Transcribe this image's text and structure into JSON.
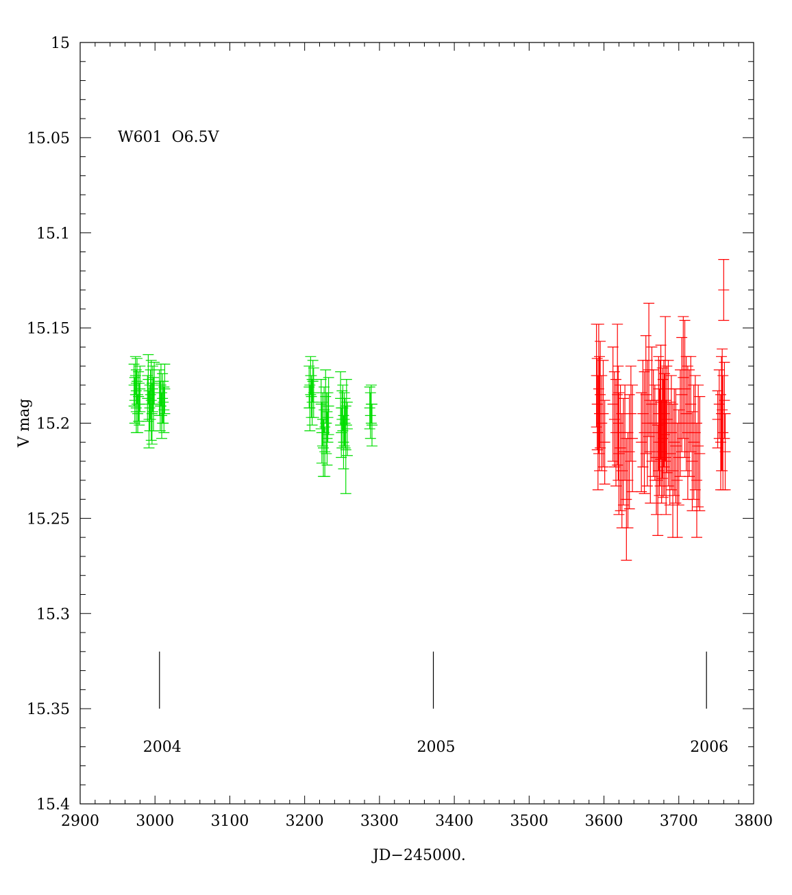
{
  "chart_data": {
    "type": "scatter",
    "title": "",
    "xlabel": "JD−245000.",
    "ylabel": "V mag",
    "xlim": [
      2900,
      3800
    ],
    "ylim": [
      15.4,
      15.0
    ],
    "y_inverted": true,
    "grid": false,
    "annotation": "W601  O6.5V",
    "x_ticks": [
      "2900",
      "3000",
      "3100",
      "3200",
      "3300",
      "3400",
      "3500",
      "3600",
      "3700",
      "3800"
    ],
    "y_ticks": [
      "15",
      "15.05",
      "15.1",
      "15.15",
      "15.2",
      "15.25",
      "15.3",
      "15.35",
      "15.4"
    ],
    "year_markers": [
      {
        "label": "2004",
        "x": 3006
      },
      {
        "label": "2005",
        "x": 3372
      },
      {
        "label": "2006",
        "x": 3737
      }
    ],
    "series": [
      {
        "color": "#00dd00",
        "points": [
          [
            2972,
            15.18,
            0.011
          ],
          [
            2973,
            15.188,
            0.012
          ],
          [
            2974,
            15.175,
            0.01
          ],
          [
            2975,
            15.192,
            0.013
          ],
          [
            2975,
            15.183,
            0.011
          ],
          [
            2976,
            15.178,
            0.012
          ],
          [
            2977,
            15.195,
            0.01
          ],
          [
            2978,
            15.186,
            0.013
          ],
          [
            2979,
            15.19,
            0.011
          ],
          [
            2980,
            15.182,
            0.012
          ],
          [
            2990,
            15.187,
            0.012
          ],
          [
            2991,
            15.177,
            0.013
          ],
          [
            2992,
            15.198,
            0.015
          ],
          [
            2993,
            15.192,
            0.012
          ],
          [
            2994,
            15.185,
            0.013
          ],
          [
            2995,
            15.188,
            0.021
          ],
          [
            2996,
            15.195,
            0.016
          ],
          [
            2997,
            15.182,
            0.012
          ],
          [
            2998,
            15.19,
            0.014
          ],
          [
            2999,
            15.179,
            0.011
          ],
          [
            3006,
            15.184,
            0.012
          ],
          [
            3007,
            15.191,
            0.013
          ],
          [
            3008,
            15.18,
            0.011
          ],
          [
            3009,
            15.196,
            0.012
          ],
          [
            3010,
            15.187,
            0.013
          ],
          [
            3011,
            15.189,
            0.011
          ],
          [
            3012,
            15.193,
            0.012
          ],
          [
            3013,
            15.182,
            0.013
          ],
          [
            3206,
            15.181,
            0.011
          ],
          [
            3207,
            15.192,
            0.012
          ],
          [
            3208,
            15.175,
            0.01
          ],
          [
            3209,
            15.186,
            0.011
          ],
          [
            3210,
            15.189,
            0.012
          ],
          [
            3211,
            15.178,
            0.011
          ],
          [
            3212,
            15.184,
            0.013
          ],
          [
            3222,
            15.19,
            0.013
          ],
          [
            3223,
            15.205,
            0.016
          ],
          [
            3224,
            15.198,
            0.014
          ],
          [
            3225,
            15.213,
            0.015
          ],
          [
            3226,
            15.193,
            0.012
          ],
          [
            3227,
            15.215,
            0.013
          ],
          [
            3228,
            15.186,
            0.014
          ],
          [
            3229,
            15.2,
            0.016
          ],
          [
            3230,
            15.208,
            0.014
          ],
          [
            3231,
            15.197,
            0.013
          ],
          [
            3232,
            15.191,
            0.015
          ],
          [
            3248,
            15.187,
            0.014
          ],
          [
            3249,
            15.205,
            0.013
          ],
          [
            3250,
            15.198,
            0.015
          ],
          [
            3251,
            15.192,
            0.012
          ],
          [
            3252,
            15.21,
            0.014
          ],
          [
            3253,
            15.198,
            0.014
          ],
          [
            3254,
            15.2,
            0.013
          ],
          [
            3255,
            15.214,
            0.023
          ],
          [
            3256,
            15.189,
            0.012
          ],
          [
            3257,
            15.203,
            0.014
          ],
          [
            3287,
            15.192,
            0.011
          ],
          [
            3288,
            15.196,
            0.012
          ],
          [
            3289,
            15.19,
            0.01
          ],
          [
            3290,
            15.201,
            0.011
          ]
        ]
      },
      {
        "color": "#ff0000",
        "points": [
          [
            3590,
            15.175,
            0.027
          ],
          [
            3591,
            15.19,
            0.024
          ],
          [
            3592,
            15.205,
            0.03
          ],
          [
            3593,
            15.182,
            0.034
          ],
          [
            3594,
            15.195,
            0.03
          ],
          [
            3595,
            15.185,
            0.028
          ],
          [
            3597,
            15.2,
            0.025
          ],
          [
            3599,
            15.195,
            0.028
          ],
          [
            3601,
            15.21,
            0.022
          ],
          [
            3612,
            15.19,
            0.03
          ],
          [
            3614,
            15.198,
            0.025
          ],
          [
            3616,
            15.205,
            0.028
          ],
          [
            3618,
            15.185,
            0.037
          ],
          [
            3619,
            15.2,
            0.03
          ],
          [
            3620,
            15.216,
            0.032
          ],
          [
            3622,
            15.213,
            0.033
          ],
          [
            3624,
            15.225,
            0.03
          ],
          [
            3626,
            15.215,
            0.028
          ],
          [
            3628,
            15.205,
            0.025
          ],
          [
            3630,
            15.24,
            0.032
          ],
          [
            3632,
            15.23,
            0.025
          ],
          [
            3634,
            15.215,
            0.03
          ],
          [
            3636,
            15.195,
            0.025
          ],
          [
            3638,
            15.208,
            0.028
          ],
          [
            3650,
            15.21,
            0.026
          ],
          [
            3652,
            15.195,
            0.028
          ],
          [
            3654,
            15.205,
            0.032
          ],
          [
            3656,
            15.185,
            0.031
          ],
          [
            3658,
            15.2,
            0.033
          ],
          [
            3660,
            15.172,
            0.035
          ],
          [
            3662,
            15.215,
            0.027
          ],
          [
            3664,
            15.19,
            0.03
          ],
          [
            3666,
            15.2,
            0.028
          ],
          [
            3668,
            15.205,
            0.025
          ],
          [
            3670,
            15.218,
            0.03
          ],
          [
            3672,
            15.23,
            0.029
          ],
          [
            3673,
            15.195,
            0.03
          ],
          [
            3674,
            15.21,
            0.028
          ],
          [
            3675,
            15.2,
            0.033
          ],
          [
            3676,
            15.189,
            0.03
          ],
          [
            3677,
            15.215,
            0.027
          ],
          [
            3678,
            15.2,
            0.029
          ],
          [
            3679,
            15.208,
            0.031
          ],
          [
            3680,
            15.195,
            0.028
          ],
          [
            3681,
            15.206,
            0.032
          ],
          [
            3682,
            15.182,
            0.038
          ],
          [
            3683,
            15.218,
            0.03
          ],
          [
            3684,
            15.198,
            0.028
          ],
          [
            3686,
            15.2,
            0.033
          ],
          [
            3688,
            15.216,
            0.027
          ],
          [
            3690,
            15.205,
            0.03
          ],
          [
            3692,
            15.225,
            0.035
          ],
          [
            3694,
            15.21,
            0.028
          ],
          [
            3696,
            15.212,
            0.03
          ],
          [
            3698,
            15.23,
            0.03
          ],
          [
            3700,
            15.218,
            0.025
          ],
          [
            3702,
            15.2,
            0.028
          ],
          [
            3704,
            15.185,
            0.03
          ],
          [
            3706,
            15.176,
            0.032
          ],
          [
            3708,
            15.182,
            0.036
          ],
          [
            3710,
            15.195,
            0.03
          ],
          [
            3712,
            15.205,
            0.035
          ],
          [
            3714,
            15.2,
            0.028
          ],
          [
            3716,
            15.19,
            0.025
          ],
          [
            3718,
            15.22,
            0.026
          ],
          [
            3720,
            15.21,
            0.03
          ],
          [
            3722,
            15.205,
            0.03
          ],
          [
            3724,
            15.23,
            0.03
          ],
          [
            3726,
            15.212,
            0.032
          ],
          [
            3728,
            15.216,
            0.03
          ],
          [
            3752,
            15.198,
            0.015
          ],
          [
            3754,
            15.19,
            0.018
          ],
          [
            3756,
            15.21,
            0.025
          ],
          [
            3757,
            15.195,
            0.03
          ],
          [
            3758,
            15.193,
            0.032
          ],
          [
            3759,
            15.205,
            0.03
          ],
          [
            3760,
            15.13,
            0.016
          ],
          [
            3761,
            15.188,
            0.02
          ],
          [
            3762,
            15.215,
            0.02
          ]
        ]
      }
    ]
  }
}
